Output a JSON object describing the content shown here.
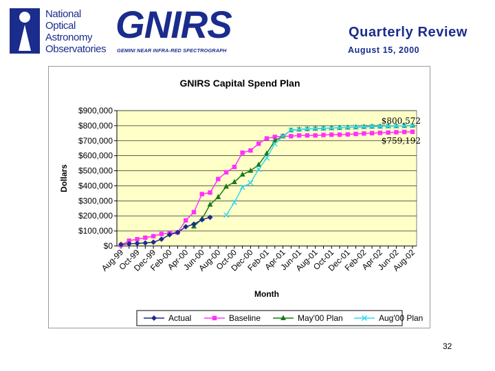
{
  "header": {
    "noao_lines": [
      "National",
      "Optical",
      "Astronomy",
      "Observatories"
    ],
    "gnirs_word": "GNIRS",
    "gnirs_subtitle": "GEMINI NEAR INFRA-RED SPECTROGRAPH",
    "title": "Quarterly Review",
    "date": "August 15, 2000"
  },
  "colors": {
    "brand": "#1a2c8c",
    "plot_bg": "#ffffc8",
    "actual": "#1a2c8c",
    "baseline": "#ff30ff",
    "may_plan": "#1a7a1a",
    "aug_plan": "#36d6f0"
  },
  "chart_data": {
    "type": "line",
    "title": "GNIRS Capital Spend Plan",
    "xlabel": "Month",
    "ylabel": "Dollars",
    "ylim": [
      0,
      900000
    ],
    "yticks": [
      0,
      100000,
      200000,
      300000,
      400000,
      500000,
      600000,
      700000,
      800000,
      900000
    ],
    "ytick_labels": [
      "$0",
      "$100,000",
      "$200,000",
      "$300,000",
      "$400,000",
      "$500,000",
      "$600,000",
      "$700,000",
      "$800,000",
      "$900,000"
    ],
    "tick_labels": [
      "Aug-99",
      "Oct-99",
      "Dec-99",
      "Feb-00",
      "Apr-00",
      "Jun-00",
      "Aug-00",
      "Oct-00",
      "Dec-00",
      "Feb-01",
      "Apr-01",
      "Jun-01",
      "Aug-01",
      "Oct-01",
      "Dec-01",
      "Feb-02",
      "Apr-02",
      "Jun-02",
      "Aug-02"
    ],
    "x": [
      "Aug-99",
      "Sep-99",
      "Oct-99",
      "Nov-99",
      "Dec-99",
      "Jan-00",
      "Feb-00",
      "Mar-00",
      "Apr-00",
      "May-00",
      "Jun-00",
      "Jul-00",
      "Aug-00",
      "Sep-00",
      "Oct-00",
      "Nov-00",
      "Dec-00",
      "Jan-01",
      "Feb-01",
      "Mar-01",
      "Apr-01",
      "May-01",
      "Jun-01",
      "Jul-01",
      "Aug-01",
      "Sep-01",
      "Oct-01",
      "Nov-01",
      "Dec-01",
      "Jan-02",
      "Feb-02",
      "Mar-02",
      "Apr-02",
      "May-02",
      "Jun-02",
      "Jul-02",
      "Aug-02"
    ],
    "grid": "horizontal",
    "legend": "bottom",
    "series": [
      {
        "name": "Actual",
        "marker": "diamond",
        "values": [
          10000,
          14000,
          17000,
          20000,
          25000,
          45000,
          75000,
          90000,
          128000,
          145000,
          175000,
          190000,
          null,
          null,
          null,
          null,
          null,
          null,
          null,
          null,
          null,
          null,
          null,
          null,
          null,
          null,
          null,
          null,
          null,
          null,
          null,
          null,
          null,
          null,
          null,
          null,
          null
        ]
      },
      {
        "name": "Baseline",
        "marker": "square",
        "values": [
          5000,
          35000,
          45000,
          55000,
          65000,
          80000,
          85000,
          90000,
          170000,
          225000,
          345000,
          355000,
          445000,
          490000,
          525000,
          620000,
          635000,
          680000,
          715000,
          725000,
          730000,
          730000,
          735000,
          735000,
          735000,
          738000,
          740000,
          740000,
          742000,
          745000,
          748000,
          750000,
          752000,
          754000,
          756000,
          758000,
          759192
        ]
      },
      {
        "name": "May'00 Plan",
        "marker": "triangle",
        "values": [
          null,
          null,
          null,
          null,
          null,
          null,
          null,
          null,
          null,
          130000,
          180000,
          275000,
          325000,
          395000,
          425000,
          475000,
          500000,
          540000,
          615000,
          700000,
          730000,
          770000,
          775000,
          778000,
          780000,
          782000,
          784000,
          786000,
          788000,
          790000,
          792000,
          794000,
          795000,
          797000,
          798000,
          799000,
          800572
        ]
      },
      {
        "name": "Aug'00 Plan",
        "marker": "x",
        "values": [
          null,
          null,
          null,
          null,
          null,
          null,
          null,
          null,
          null,
          null,
          null,
          null,
          null,
          205000,
          290000,
          390000,
          420000,
          510000,
          585000,
          680000,
          730000,
          770000,
          775000,
          778000,
          780000,
          782000,
          784000,
          786000,
          788000,
          790000,
          792000,
          794000,
          795000,
          797000,
          798000,
          799000,
          800572
        ]
      }
    ],
    "annotations": [
      "$800,572",
      "$759,192"
    ]
  },
  "page_number": "32"
}
